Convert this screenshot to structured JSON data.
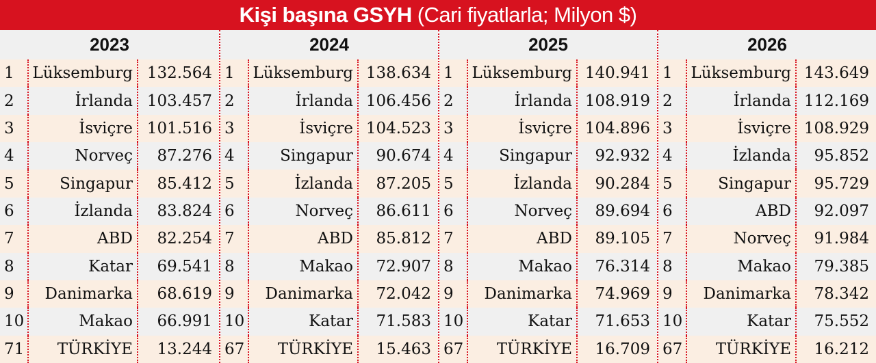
{
  "title": {
    "bold": "Kişi başına GSYH",
    "light": "(Cari fiyatlarla; Milyon $)"
  },
  "columns": [
    {
      "year": "2023",
      "rows": [
        {
          "rank": "1",
          "country": "Lüksemburg",
          "value": "132.564"
        },
        {
          "rank": "2",
          "country": "İrlanda",
          "value": "103.457"
        },
        {
          "rank": "3",
          "country": "İsviçre",
          "value": "101.516"
        },
        {
          "rank": "4",
          "country": "Norveç",
          "value": "87.276"
        },
        {
          "rank": "5",
          "country": "Singapur",
          "value": "85.412"
        },
        {
          "rank": "6",
          "country": "İzlanda",
          "value": "83.824"
        },
        {
          "rank": "7",
          "country": "ABD",
          "value": "82.254"
        },
        {
          "rank": "8",
          "country": "Katar",
          "value": "69.541"
        },
        {
          "rank": "9",
          "country": "Danimarka",
          "value": "68.619"
        },
        {
          "rank": "10",
          "country": "Makao",
          "value": "66.991"
        },
        {
          "rank": "71",
          "country": "TÜRKİYE",
          "value": "13.244"
        }
      ]
    },
    {
      "year": "2024",
      "rows": [
        {
          "rank": "1",
          "country": "Lüksemburg",
          "value": "138.634"
        },
        {
          "rank": "2",
          "country": "İrlanda",
          "value": "106.456"
        },
        {
          "rank": "3",
          "country": "İsviçre",
          "value": "104.523"
        },
        {
          "rank": "4",
          "country": "Singapur",
          "value": "90.674"
        },
        {
          "rank": "5",
          "country": "İzlanda",
          "value": "87.205"
        },
        {
          "rank": "6",
          "country": "Norveç",
          "value": "86.611"
        },
        {
          "rank": "7",
          "country": "ABD",
          "value": "85.812"
        },
        {
          "rank": "8",
          "country": "Makao",
          "value": "72.907"
        },
        {
          "rank": "9",
          "country": "Danimarka",
          "value": "72.042"
        },
        {
          "rank": "10",
          "country": "Katar",
          "value": "71.583"
        },
        {
          "rank": "67",
          "country": "TÜRKİYE",
          "value": "15.463"
        }
      ]
    },
    {
      "year": "2025",
      "rows": [
        {
          "rank": "1",
          "country": "Lüksemburg",
          "value": "140.941"
        },
        {
          "rank": "2",
          "country": "İrlanda",
          "value": "108.919"
        },
        {
          "rank": "3",
          "country": "İsviçre",
          "value": "104.896"
        },
        {
          "rank": "4",
          "country": "Singapur",
          "value": "92.932"
        },
        {
          "rank": "5",
          "country": "İzlanda",
          "value": "90.284"
        },
        {
          "rank": "6",
          "country": "Norveç",
          "value": "89.694"
        },
        {
          "rank": "7",
          "country": "ABD",
          "value": "89.105"
        },
        {
          "rank": "8",
          "country": "Makao",
          "value": "76.314"
        },
        {
          "rank": "9",
          "country": "Danimarka",
          "value": "74.969"
        },
        {
          "rank": "10",
          "country": "Katar",
          "value": "71.653"
        },
        {
          "rank": "67",
          "country": "TÜRKİYE",
          "value": "16.709"
        }
      ]
    },
    {
      "year": "2026",
      "rows": [
        {
          "rank": "1",
          "country": "Lüksemburg",
          "value": "143.649"
        },
        {
          "rank": "2",
          "country": "İrlanda",
          "value": "112.169"
        },
        {
          "rank": "3",
          "country": "İsviçre",
          "value": "108.929"
        },
        {
          "rank": "4",
          "country": "İzlanda",
          "value": "95.852"
        },
        {
          "rank": "5",
          "country": "Singapur",
          "value": "95.729"
        },
        {
          "rank": "6",
          "country": "ABD",
          "value": "92.097"
        },
        {
          "rank": "7",
          "country": "Norveç",
          "value": "91.984"
        },
        {
          "rank": "8",
          "country": "Makao",
          "value": "79.385"
        },
        {
          "rank": "9",
          "country": "Danimarka",
          "value": "78.342"
        },
        {
          "rank": "10",
          "country": "Katar",
          "value": "75.552"
        },
        {
          "rank": "67",
          "country": "TÜRKİYE",
          "value": "16.212"
        }
      ]
    }
  ],
  "colors": {
    "accent": "#d7121f",
    "row_odd": "#fbeee2",
    "row_even": "#f0f0f0"
  }
}
